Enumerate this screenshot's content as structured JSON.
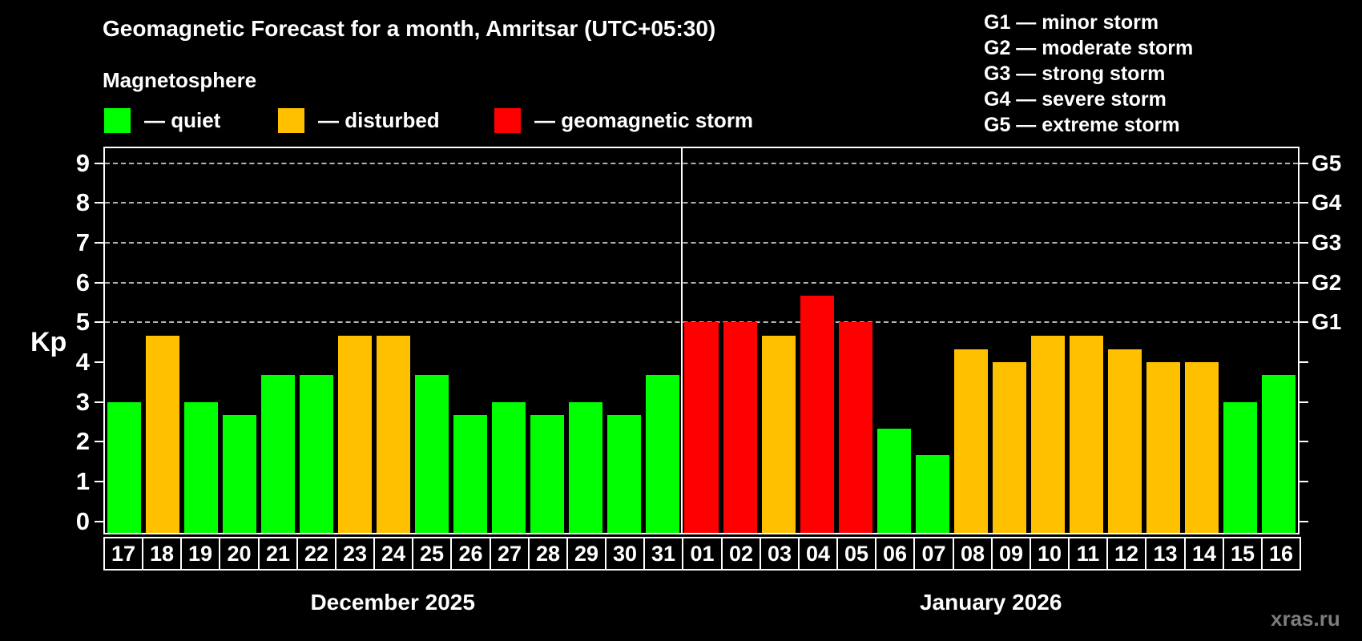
{
  "title": "Geomagnetic Forecast for a month, Amritsar (UTC+05:30)",
  "subtitle": "Magnetosphere",
  "watermark": "xras.ru",
  "y_axis": {
    "label": "Kp"
  },
  "legend": {
    "items": [
      {
        "label": "— quiet",
        "status": "quiet",
        "color": "#00ff00"
      },
      {
        "label": "— disturbed",
        "status": "disturbed",
        "color": "#ffc000"
      },
      {
        "label": "— geomagnetic storm",
        "status": "storm",
        "color": "#ff0000"
      }
    ]
  },
  "g_scale": {
    "items": [
      "G1 — minor storm",
      "G2 — moderate storm",
      "G3 — strong storm",
      "G4 — severe storm",
      "G5 — extreme storm"
    ]
  },
  "chart_data": {
    "type": "bar",
    "title": "Geomagnetic Forecast for a month, Amritsar (UTC+05:30)",
    "subtitle": "Magnetosphere",
    "ylabel": "Kp",
    "ylim": [
      0,
      9.4
    ],
    "yticks": [
      0,
      1,
      2,
      3,
      4,
      5,
      6,
      7,
      8,
      9
    ],
    "grid": "dashed horizontal lines at Kp 5-9 only",
    "legend_position": "top-left",
    "status_colors": {
      "quiet": "#00ff00",
      "disturbed": "#ffc000",
      "storm": "#ff0000"
    },
    "grid_levels": [
      {
        "kp": 5,
        "label": "G1"
      },
      {
        "kp": 6,
        "label": "G2"
      },
      {
        "kp": 7,
        "label": "G3"
      },
      {
        "kp": 8,
        "label": "G4"
      },
      {
        "kp": 9,
        "label": "G5"
      }
    ],
    "months": [
      {
        "label": "December 2025",
        "days": [
          {
            "day": "17",
            "kp": 3.0,
            "status": "quiet"
          },
          {
            "day": "18",
            "kp": 4.67,
            "status": "disturbed"
          },
          {
            "day": "19",
            "kp": 3.0,
            "status": "quiet"
          },
          {
            "day": "20",
            "kp": 2.67,
            "status": "quiet"
          },
          {
            "day": "21",
            "kp": 3.67,
            "status": "quiet"
          },
          {
            "day": "22",
            "kp": 3.67,
            "status": "quiet"
          },
          {
            "day": "23",
            "kp": 4.67,
            "status": "disturbed"
          },
          {
            "day": "24",
            "kp": 4.67,
            "status": "disturbed"
          },
          {
            "day": "25",
            "kp": 3.67,
            "status": "quiet"
          },
          {
            "day": "26",
            "kp": 2.67,
            "status": "quiet"
          },
          {
            "day": "27",
            "kp": 3.0,
            "status": "quiet"
          },
          {
            "day": "28",
            "kp": 2.67,
            "status": "quiet"
          },
          {
            "day": "29",
            "kp": 3.0,
            "status": "quiet"
          },
          {
            "day": "30",
            "kp": 2.67,
            "status": "quiet"
          },
          {
            "day": "31",
            "kp": 3.67,
            "status": "quiet"
          }
        ]
      },
      {
        "label": "January 2026",
        "days": [
          {
            "day": "01",
            "kp": 5.0,
            "status": "storm"
          },
          {
            "day": "02",
            "kp": 5.0,
            "status": "storm"
          },
          {
            "day": "03",
            "kp": 4.67,
            "status": "disturbed"
          },
          {
            "day": "04",
            "kp": 5.67,
            "status": "storm"
          },
          {
            "day": "05",
            "kp": 5.0,
            "status": "storm"
          },
          {
            "day": "06",
            "kp": 2.33,
            "status": "quiet"
          },
          {
            "day": "07",
            "kp": 1.67,
            "status": "quiet"
          },
          {
            "day": "08",
            "kp": 4.33,
            "status": "disturbed"
          },
          {
            "day": "09",
            "kp": 4.0,
            "status": "disturbed"
          },
          {
            "day": "10",
            "kp": 4.67,
            "status": "disturbed"
          },
          {
            "day": "11",
            "kp": 4.67,
            "status": "disturbed"
          },
          {
            "day": "12",
            "kp": 4.33,
            "status": "disturbed"
          },
          {
            "day": "13",
            "kp": 4.0,
            "status": "disturbed"
          },
          {
            "day": "14",
            "kp": 4.0,
            "status": "disturbed"
          },
          {
            "day": "15",
            "kp": 3.0,
            "status": "quiet"
          },
          {
            "day": "16",
            "kp": 3.67,
            "status": "quiet"
          }
        ]
      }
    ]
  }
}
